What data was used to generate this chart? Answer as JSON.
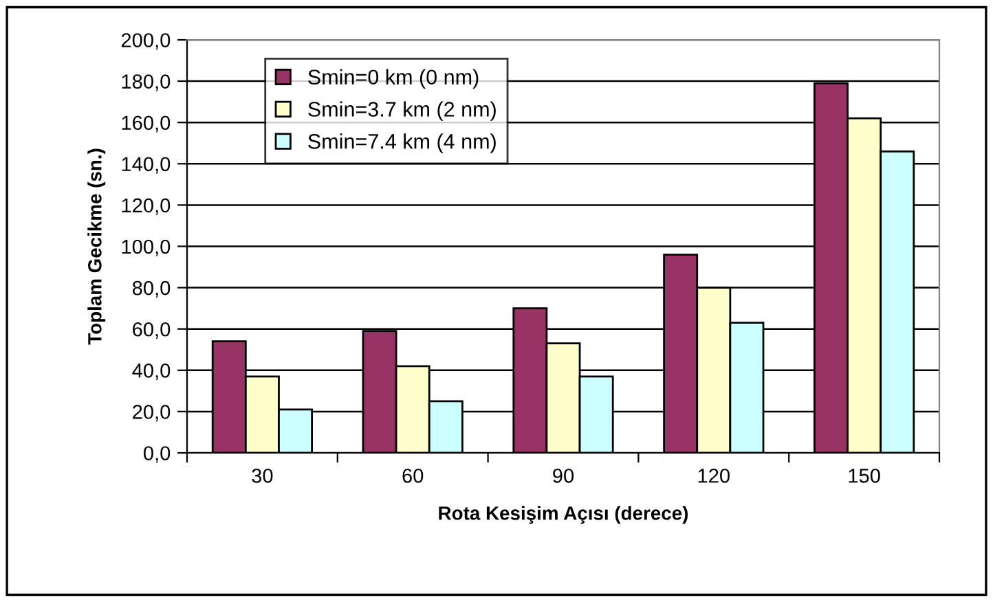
{
  "chart_data": {
    "type": "bar",
    "xlabel": "Rota Kesişim Açısı (derece)",
    "ylabel": "Toplam Gecikme (sn.)",
    "categories": [
      "30",
      "60",
      "90",
      "120",
      "150"
    ],
    "series": [
      {
        "name": "Smin=0 km (0 nm)",
        "color": "#993366",
        "values": [
          54,
          59,
          70,
          96,
          179
        ]
      },
      {
        "name": "Smin=3.7 km (2 nm)",
        "color": "#ffffcc",
        "values": [
          37,
          42,
          53,
          80,
          162
        ]
      },
      {
        "name": "Smin=7.4 km (4 nm)",
        "color": "#ccffff",
        "values": [
          21,
          25,
          37,
          63,
          146
        ]
      }
    ],
    "ylim": [
      0,
      200
    ],
    "yticks": [
      {
        "value": 0,
        "label": "0,0"
      },
      {
        "value": 20,
        "label": "20,0"
      },
      {
        "value": 40,
        "label": "40,0"
      },
      {
        "value": 60,
        "label": "60,0"
      },
      {
        "value": 80,
        "label": "80,0"
      },
      {
        "value": 100,
        "label": "100,0"
      },
      {
        "value": 120,
        "label": "120,0"
      },
      {
        "value": 140,
        "label": "140,0"
      },
      {
        "value": 160,
        "label": "160,0"
      },
      {
        "value": 180,
        "label": "180,0"
      },
      {
        "value": 200,
        "label": "200,0"
      }
    ],
    "grid": "y",
    "legend": "top left"
  }
}
